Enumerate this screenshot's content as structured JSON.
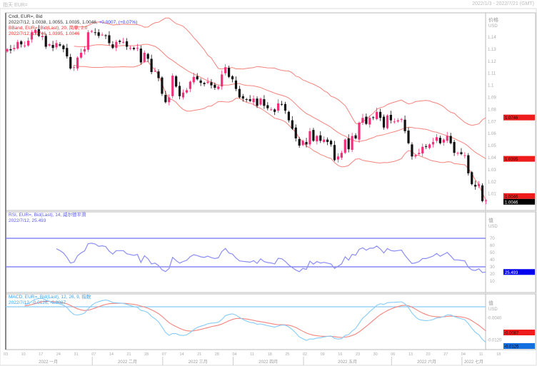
{
  "header": {
    "title": "指天 EUR=",
    "range": "2022/1/3 - 2022/7/21 (GMT)"
  },
  "price_panel": {
    "legend1": "Cndl, EUR=, Bid",
    "legend2": "2022/7/12, 1.0038, 1.0055, 1.0035, 1.0046,",
    "legend2_change": "+0.0007, (+0.07%)",
    "legend3": "BBand, EUR=, Bid(Last), 20, 简单, 2.0",
    "legend4": "2022/7/12, 1.0746, 1.0395, 1.0046",
    "axis_title": "价格",
    "axis_unit": "USD",
    "badges": [
      "1.0746",
      "1.0395",
      "1.0046"
    ],
    "last_badge": "1.0046"
  },
  "rsi_panel": {
    "legend1": "RSI, EUR=, Bid(Last), 14, 威尔德平滑",
    "legend2": "2022/7/12, 25.493",
    "axis_title": "值",
    "axis_unit": "USD",
    "badge": "25.493",
    "ticks": [
      70,
      60,
      50,
      40,
      30,
      20,
      10
    ]
  },
  "macd_panel": {
    "legend1": "MACD, EUR=, Bid(Last), 12, 26, 9, 指数",
    "legend2": "2022/7/12, -0.0126, -0.0087",
    "axis_title": "值",
    "axis_unit": "USD",
    "badges": [
      "-0.0087",
      "-0.0126"
    ],
    "ticks": [
      -0.004,
      -0.012
    ]
  },
  "colors": {
    "up": "#f0307a",
    "down": "#111111",
    "bband": "#f4837d",
    "rsi": "#8a8cf2",
    "rsi_levels": "#6f72ee",
    "macd": "#86cbf7",
    "signal": "#f4837d",
    "badge_red": "#ee1c1c",
    "badge_blue": "#1470e0"
  },
  "chart_data": {
    "type": "candlestick",
    "ylim": [
      1.0,
      1.15
    ],
    "yticks": [
      1.14,
      1.13,
      1.12,
      1.11,
      1.1,
      1.09,
      1.08,
      1.07,
      1.06,
      1.05,
      1.04,
      1.03,
      1.02,
      1.01
    ],
    "date_ticks": [
      "03",
      "10",
      "17",
      "24",
      "31",
      "07",
      "14",
      "21",
      "28",
      "07",
      "14",
      "21",
      "28",
      "04",
      "11",
      "18",
      "25",
      "02",
      "09",
      "16",
      "23",
      "30",
      "06",
      "13",
      "20",
      "27",
      "04",
      "11",
      "18"
    ],
    "months": [
      "2022 一月",
      "2022 二月",
      "2022 三月",
      "2022 四月",
      "2022 五月",
      "2022 六月",
      "2022 七月"
    ],
    "closes": [
      1.13,
      1.129,
      1.131,
      1.136,
      1.134,
      1.133,
      1.137,
      1.144,
      1.146,
      1.141,
      1.141,
      1.132,
      1.134,
      1.131,
      1.135,
      1.133,
      1.13,
      1.124,
      1.114,
      1.115,
      1.123,
      1.127,
      1.13,
      1.144,
      1.145,
      1.144,
      1.141,
      1.142,
      1.141,
      1.135,
      1.131,
      1.136,
      1.136,
      1.136,
      1.132,
      1.131,
      1.13,
      1.131,
      1.119,
      1.127,
      1.122,
      1.111,
      1.112,
      1.106,
      1.093,
      1.086,
      1.09,
      1.108,
      1.099,
      1.091,
      1.094,
      1.096,
      1.103,
      1.107,
      1.105,
      1.102,
      1.101,
      1.103,
      1.1,
      1.098,
      1.099,
      1.109,
      1.115,
      1.107,
      1.105,
      1.097,
      1.09,
      1.089,
      1.088,
      1.087,
      1.089,
      1.083,
      1.089,
      1.083,
      1.081,
      1.08,
      1.078,
      1.085,
      1.084,
      1.079,
      1.071,
      1.064,
      1.056,
      1.05,
      1.054,
      1.051,
      1.062,
      1.054,
      1.058,
      1.054,
      1.055,
      1.053,
      1.051,
      1.038,
      1.041,
      1.044,
      1.055,
      1.047,
      1.058,
      1.056,
      1.069,
      1.073,
      1.068,
      1.073,
      1.073,
      1.078,
      1.073,
      1.065,
      1.075,
      1.071,
      1.07,
      1.071,
      1.072,
      1.062,
      1.052,
      1.041,
      1.042,
      1.044,
      1.049,
      1.049,
      1.051,
      1.053,
      1.057,
      1.052,
      1.055,
      1.058,
      1.052,
      1.044,
      1.044,
      1.043,
      1.042,
      1.027,
      1.018,
      1.016,
      1.018,
      1.004,
      1.0046
    ]
  }
}
